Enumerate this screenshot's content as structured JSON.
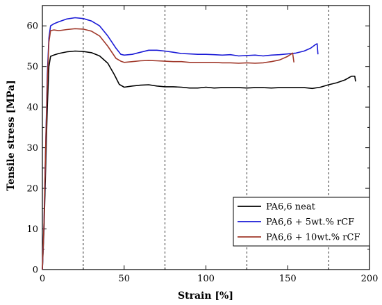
{
  "chart_data": {
    "type": "line",
    "xlabel": "Strain [%]",
    "ylabel": "Tensile stress [MPa]",
    "xlim": [
      0,
      200
    ],
    "ylim": [
      0,
      65
    ],
    "xticks": [
      0,
      50,
      100,
      150,
      200
    ],
    "yticks": [
      0,
      10,
      20,
      30,
      40,
      50,
      60
    ],
    "xtick_labels": [
      "0",
      "50",
      "100",
      "150",
      "200"
    ],
    "ytick_labels": [
      "0",
      "10",
      "20",
      "30",
      "40",
      "50",
      "60"
    ],
    "minor_xtick_step": 25,
    "minor_ytick_step": 5,
    "vertical_dashed_lines": [
      25,
      75,
      125,
      175
    ],
    "grid": false,
    "legend_position": "bottom-right",
    "series": [
      {
        "name": "PA6,6 neat",
        "color": "#000000",
        "points": [
          [
            0,
            0
          ],
          [
            1,
            10
          ],
          [
            2,
            25
          ],
          [
            3,
            40
          ],
          [
            4,
            50
          ],
          [
            5,
            52.5
          ],
          [
            7,
            52.8
          ],
          [
            10,
            53.2
          ],
          [
            15,
            53.6
          ],
          [
            20,
            53.8
          ],
          [
            25,
            53.7
          ],
          [
            30,
            53.4
          ],
          [
            35,
            52.6
          ],
          [
            40,
            50.8
          ],
          [
            44,
            48
          ],
          [
            47,
            45.6
          ],
          [
            50,
            44.9
          ],
          [
            55,
            45.2
          ],
          [
            60,
            45.4
          ],
          [
            65,
            45.5
          ],
          [
            70,
            45.2
          ],
          [
            75,
            45
          ],
          [
            80,
            45
          ],
          [
            85,
            44.9
          ],
          [
            90,
            44.7
          ],
          [
            95,
            44.7
          ],
          [
            100,
            44.9
          ],
          [
            105,
            44.7
          ],
          [
            110,
            44.8
          ],
          [
            115,
            44.8
          ],
          [
            120,
            44.8
          ],
          [
            125,
            44.7
          ],
          [
            130,
            44.8
          ],
          [
            135,
            44.8
          ],
          [
            140,
            44.7
          ],
          [
            145,
            44.8
          ],
          [
            150,
            44.8
          ],
          [
            155,
            44.8
          ],
          [
            160,
            44.8
          ],
          [
            165,
            44.6
          ],
          [
            170,
            44.9
          ],
          [
            175,
            45.5
          ],
          [
            180,
            46
          ],
          [
            185,
            46.7
          ],
          [
            189,
            47.6
          ],
          [
            191,
            47.6
          ],
          [
            191.5,
            46.3
          ]
        ]
      },
      {
        "name": "PA6,6 + 5wt.% rCF",
        "color": "#1a1ad6",
        "points": [
          [
            0,
            0
          ],
          [
            1,
            12
          ],
          [
            2,
            30
          ],
          [
            3,
            48
          ],
          [
            4,
            57
          ],
          [
            5,
            60
          ],
          [
            7,
            60.5
          ],
          [
            10,
            61
          ],
          [
            15,
            61.7
          ],
          [
            20,
            62
          ],
          [
            25,
            61.8
          ],
          [
            30,
            61.2
          ],
          [
            35,
            60
          ],
          [
            40,
            57.5
          ],
          [
            45,
            54.5
          ],
          [
            48,
            53
          ],
          [
            50,
            52.8
          ],
          [
            55,
            53
          ],
          [
            60,
            53.5
          ],
          [
            65,
            54
          ],
          [
            70,
            54
          ],
          [
            75,
            53.8
          ],
          [
            80,
            53.5
          ],
          [
            85,
            53.2
          ],
          [
            90,
            53.1
          ],
          [
            95,
            53
          ],
          [
            100,
            53
          ],
          [
            105,
            52.9
          ],
          [
            110,
            52.8
          ],
          [
            115,
            52.9
          ],
          [
            120,
            52.6
          ],
          [
            125,
            52.7
          ],
          [
            130,
            52.8
          ],
          [
            135,
            52.6
          ],
          [
            140,
            52.8
          ],
          [
            145,
            52.9
          ],
          [
            150,
            53.1
          ],
          [
            155,
            53.3
          ],
          [
            160,
            53.8
          ],
          [
            164,
            54.5
          ],
          [
            167,
            55.4
          ],
          [
            168,
            55.6
          ],
          [
            168.5,
            53
          ]
        ]
      },
      {
        "name": "PA6,6 + 10wt.% rCF",
        "color": "#a0382a",
        "points": [
          [
            0,
            0
          ],
          [
            1,
            12
          ],
          [
            2,
            30
          ],
          [
            3,
            46
          ],
          [
            4,
            56
          ],
          [
            5,
            58.8
          ],
          [
            7,
            59
          ],
          [
            10,
            58.8
          ],
          [
            15,
            59.1
          ],
          [
            20,
            59.3
          ],
          [
            25,
            59.2
          ],
          [
            30,
            58.7
          ],
          [
            35,
            57.5
          ],
          [
            40,
            55
          ],
          [
            45,
            52
          ],
          [
            48,
            51.3
          ],
          [
            50,
            51
          ],
          [
            55,
            51.2
          ],
          [
            60,
            51.4
          ],
          [
            65,
            51.5
          ],
          [
            70,
            51.4
          ],
          [
            75,
            51.3
          ],
          [
            80,
            51.2
          ],
          [
            85,
            51.2
          ],
          [
            90,
            51
          ],
          [
            95,
            51
          ],
          [
            100,
            51
          ],
          [
            105,
            51
          ],
          [
            110,
            50.9
          ],
          [
            115,
            50.9
          ],
          [
            120,
            50.8
          ],
          [
            125,
            50.9
          ],
          [
            130,
            50.8
          ],
          [
            135,
            50.9
          ],
          [
            140,
            51.2
          ],
          [
            145,
            51.6
          ],
          [
            150,
            52.5
          ],
          [
            153,
            53.3
          ],
          [
            153.8,
            51
          ]
        ]
      }
    ]
  }
}
